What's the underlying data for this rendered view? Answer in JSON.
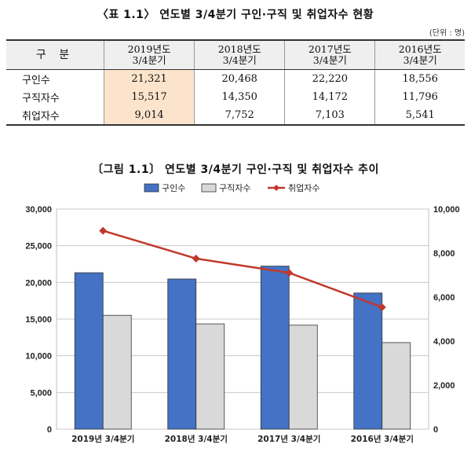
{
  "table": {
    "title": "〈표 1.1〉 연도별 3/4분기 구인·구직 및 취업자수 현황",
    "unit": "(단위 : 명)",
    "header_first": "구 분",
    "columns": [
      {
        "line1": "2019년도",
        "line2": "3/4분기"
      },
      {
        "line1": "2018년도",
        "line2": "3/4분기"
      },
      {
        "line1": "2017년도",
        "line2": "3/4분기"
      },
      {
        "line1": "2016년도",
        "line2": "3/4분기"
      }
    ],
    "rows": [
      {
        "label": "구인수",
        "values": [
          "21,321",
          "20,468",
          "22,220",
          "18,556"
        ]
      },
      {
        "label": "구직자수",
        "values": [
          "15,517",
          "14,350",
          "14,172",
          "11,796"
        ]
      },
      {
        "label": "취업자수",
        "values": [
          "9,014",
          "7,752",
          "7,103",
          "5,541"
        ]
      }
    ],
    "highlight_color": "#fce4cc"
  },
  "chart_data": {
    "type": "bar",
    "title": "〔그림 1.1〕 연도별 3/4분기 구인·구직 및 취업자수 추이",
    "categories": [
      "2019년 3/4분기",
      "2018년 3/4분기",
      "2017년 3/4분기",
      "2016년 3/4분기"
    ],
    "series": [
      {
        "name": "구인수",
        "type": "bar",
        "axis": "left",
        "color": "#4472c4",
        "values": [
          21321,
          20468,
          22220,
          18556
        ]
      },
      {
        "name": "구직자수",
        "type": "bar",
        "axis": "left",
        "color": "#d9d9d9",
        "values": [
          15517,
          14350,
          14172,
          11796
        ]
      },
      {
        "name": "취업자수",
        "type": "line",
        "axis": "right",
        "color": "#c0392b",
        "values": [
          9014,
          7752,
          7103,
          5541
        ]
      }
    ],
    "y_left": {
      "min": 0,
      "max": 30000,
      "ticks": [
        "0",
        "5,000",
        "10,000",
        "15,000",
        "20,000",
        "25,000",
        "30,000"
      ]
    },
    "y_right": {
      "min": 0,
      "max": 10000,
      "ticks": [
        "0",
        "2,000",
        "4,000",
        "6,000",
        "8,000",
        "10,000"
      ]
    },
    "grid": true,
    "legend_position": "top"
  }
}
